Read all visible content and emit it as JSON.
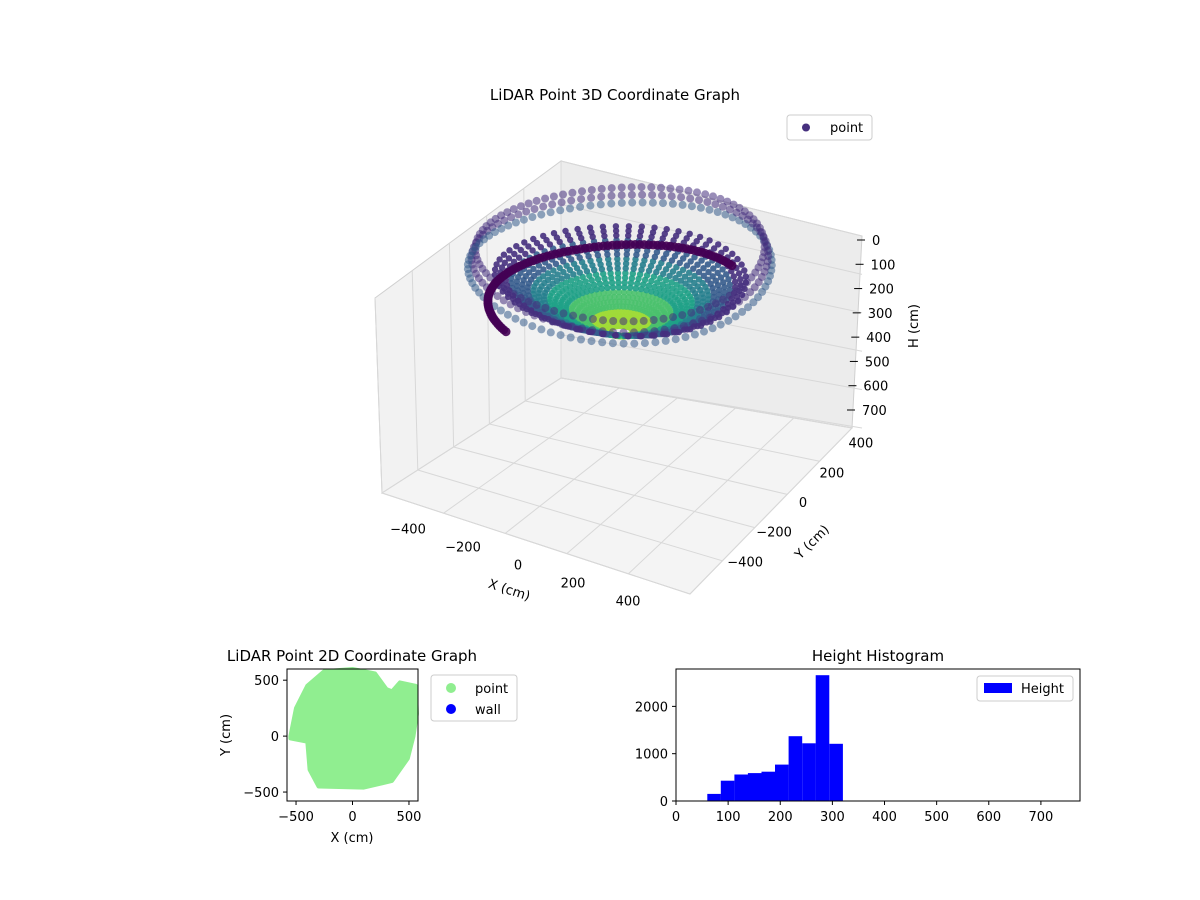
{
  "chart_data": [
    {
      "type": "scatter3d",
      "title": "LiDAR Point 3D Coordinate Graph",
      "xlabel": "X (cm)",
      "ylabel": "Y (cm)",
      "zlabel": "H (cm)",
      "xlim": [
        -560,
        560
      ],
      "ylim": [
        -560,
        560
      ],
      "zlim": [
        770,
        0
      ],
      "xticks": [
        "−400",
        "−200",
        "0",
        "200",
        "400"
      ],
      "yticks": [
        "−400",
        "−200",
        "0",
        "200",
        "400"
      ],
      "zticks": [
        "0",
        "100",
        "200",
        "300",
        "400",
        "500",
        "600",
        "700"
      ],
      "legend": {
        "entries": [
          {
            "label": "point",
            "color": "#46307e"
          }
        ],
        "placement": "upper right"
      },
      "colormap": "viridis",
      "grid": true,
      "series": [
        {
          "description_ring": "outer rim",
          "radius_range": [
            470,
            500
          ],
          "height": [
            40,
            110
          ],
          "color_scale": "by height"
        },
        {
          "description_ring": "inner bowl",
          "radius_range": [
            0,
            420
          ],
          "height": [
            130,
            320
          ],
          "color_scale": "by height"
        }
      ]
    },
    {
      "type": "scatter",
      "title": "LiDAR Point 2D Coordinate Graph",
      "xlabel": "X (cm)",
      "ylabel": "Y (cm)",
      "xlim": [
        -580,
        580
      ],
      "ylim": [
        -580,
        600
      ],
      "xticks": [
        "−500",
        "0",
        "500"
      ],
      "yticks": [
        "−500",
        "0",
        "500"
      ],
      "legend": {
        "entries": [
          {
            "label": "point",
            "color": "#90ee90"
          },
          {
            "label": "wall",
            "color": "#0000ff"
          }
        ],
        "placement": "outside right"
      },
      "grid": false,
      "series": [
        {
          "name": "point",
          "color": "#90ee90",
          "outline_xy": [
            [
              -550,
              0
            ],
            [
              -500,
              250
            ],
            [
              -400,
              450
            ],
            [
              -250,
              580
            ],
            [
              0,
              600
            ],
            [
              200,
              560
            ],
            [
              300,
              420
            ],
            [
              350,
              400
            ],
            [
              420,
              480
            ],
            [
              560,
              450
            ],
            [
              570,
              200
            ],
            [
              540,
              0
            ],
            [
              490,
              -200
            ],
            [
              350,
              -400
            ],
            [
              100,
              -460
            ],
            [
              -300,
              -450
            ],
            [
              -380,
              -300
            ],
            [
              -400,
              -50
            ],
            [
              -550,
              -20
            ]
          ]
        },
        {
          "name": "wall",
          "color": "#0000ff",
          "outline_xy": []
        }
      ]
    },
    {
      "type": "bar",
      "title": "Height Histogram",
      "xlim": [
        0,
        775
      ],
      "ylim": [
        0,
        2790
      ],
      "xticks": [
        "0",
        "100",
        "200",
        "300",
        "400",
        "500",
        "600",
        "700"
      ],
      "yticks": [
        "0",
        "1000",
        "2000"
      ],
      "legend": {
        "entries": [
          {
            "label": "Height",
            "color": "#0000ff"
          }
        ],
        "placement": "upper right"
      },
      "grid": false,
      "bin_edges": [
        60,
        86,
        112,
        138,
        164,
        190,
        216,
        242,
        268,
        294,
        320
      ],
      "values": [
        150,
        430,
        560,
        590,
        620,
        770,
        1370,
        1220,
        2660,
        1210
      ],
      "series": [
        {
          "name": "Height",
          "color": "#0000ff"
        }
      ]
    }
  ]
}
